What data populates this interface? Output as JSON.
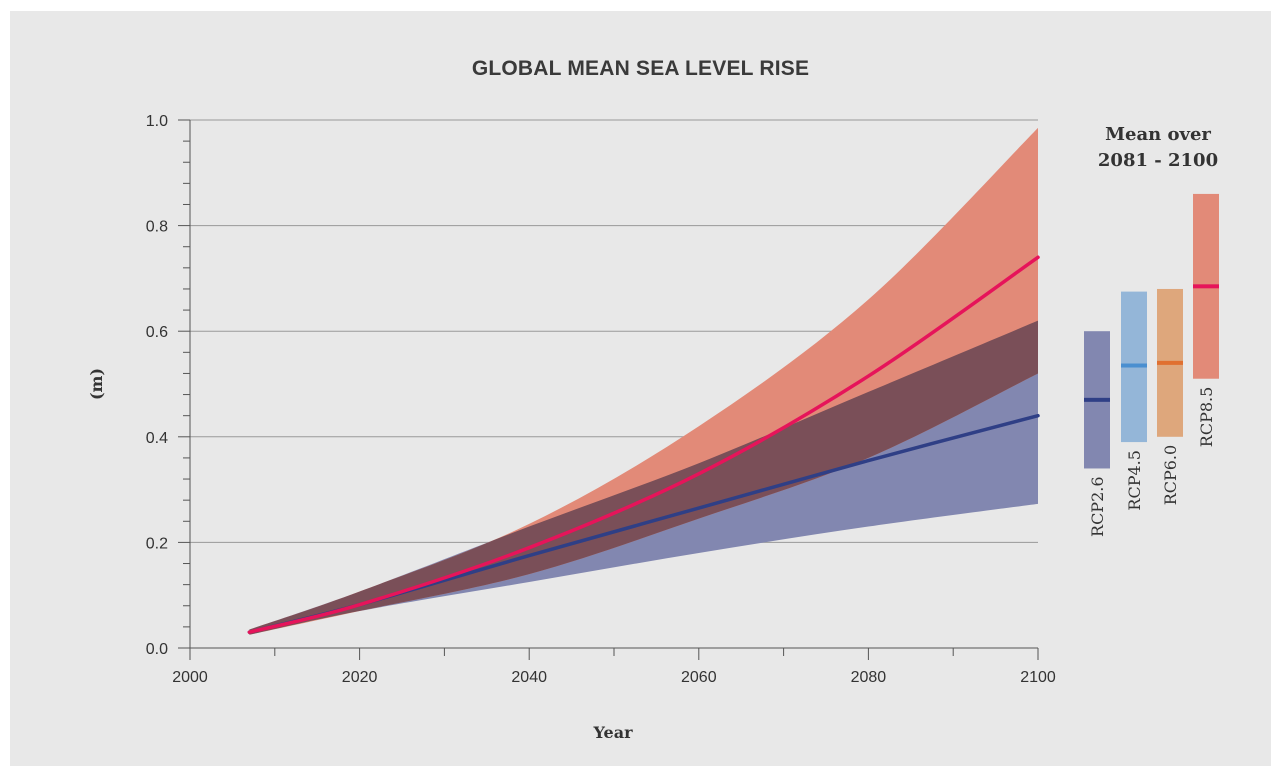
{
  "chart_data": {
    "type": "area",
    "title": "GLOBAL MEAN SEA LEVEL RISE",
    "xlabel": "Year",
    "ylabel": "(m)",
    "xlim": [
      2000,
      2100
    ],
    "ylim": [
      0.0,
      1.0
    ],
    "x_ticks": [
      2000,
      2020,
      2040,
      2060,
      2080,
      2100
    ],
    "y_ticks": [
      "0.0",
      "0.2",
      "0.4",
      "0.6",
      "0.8",
      "1.0"
    ],
    "grid": true,
    "x": [
      2007,
      2020,
      2040,
      2060,
      2080,
      2100
    ],
    "series": [
      {
        "name": "RCP2.6",
        "color": "#2f3f86",
        "band_color": "#8287b0",
        "values": [
          0.03,
          0.082,
          0.175,
          0.265,
          0.355,
          0.44
        ],
        "lower": [
          0.025,
          0.07,
          0.125,
          0.18,
          0.23,
          0.273
        ],
        "upper": [
          0.035,
          0.107,
          0.23,
          0.35,
          0.485,
          0.62
        ]
      },
      {
        "name": "RCP8.5",
        "color": "#e6145a",
        "band_color": "#e28a78",
        "values": [
          0.03,
          0.082,
          0.19,
          0.33,
          0.515,
          0.74
        ],
        "lower": [
          0.025,
          0.07,
          0.14,
          0.245,
          0.36,
          0.52
        ],
        "upper": [
          0.035,
          0.107,
          0.235,
          0.42,
          0.66,
          0.985
        ]
      }
    ],
    "overlap_color": "#7a4f58",
    "legend": {
      "title_line1": "Mean over",
      "title_line2": "2081 - 2100",
      "bars": [
        {
          "name": "RCP2.6",
          "low": 0.34,
          "high": 0.6,
          "mean": 0.47,
          "fill": "#8287b0",
          "mean_color": "#2f3f86"
        },
        {
          "name": "RCP4.5",
          "low": 0.39,
          "high": 0.675,
          "mean": 0.535,
          "fill": "#94b6d8",
          "mean_color": "#4a8fd0"
        },
        {
          "name": "RCP6.0",
          "low": 0.4,
          "high": 0.68,
          "mean": 0.54,
          "fill": "#dea77c",
          "mean_color": "#e07030"
        },
        {
          "name": "RCP8.5",
          "low": 0.51,
          "high": 0.86,
          "mean": 0.685,
          "fill": "#e28a78",
          "mean_color": "#e6145a"
        }
      ]
    }
  }
}
